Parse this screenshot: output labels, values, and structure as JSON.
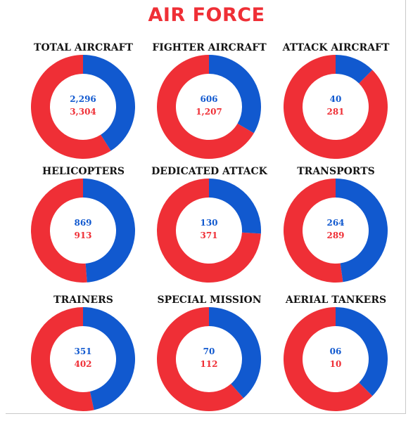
{
  "title": "AIR FORCE",
  "colors": {
    "primary": "#1159cf",
    "secondary": "#ef2f36"
  },
  "chart_data": [
    {
      "type": "pie",
      "title": "TOTAL AIRCRAFT",
      "values": [
        2296,
        3304
      ],
      "labels": [
        "2,296",
        "3,304"
      ]
    },
    {
      "type": "pie",
      "title": "FIGHTER AIRCRAFT",
      "values": [
        606,
        1207
      ],
      "labels": [
        "606",
        "1,207"
      ]
    },
    {
      "type": "pie",
      "title": "ATTACK AIRCRAFT",
      "values": [
        40,
        281
      ],
      "labels": [
        "40",
        "281"
      ]
    },
    {
      "type": "pie",
      "title": "HELICOPTERS",
      "values": [
        869,
        913
      ],
      "labels": [
        "869",
        "913"
      ]
    },
    {
      "type": "pie",
      "title": "DEDICATED ATTACK",
      "values": [
        130,
        371
      ],
      "labels": [
        "130",
        "371"
      ]
    },
    {
      "type": "pie",
      "title": "TRANSPORTS",
      "values": [
        264,
        289
      ],
      "labels": [
        "264",
        "289"
      ]
    },
    {
      "type": "pie",
      "title": "TRAINERS",
      "values": [
        351,
        402
      ],
      "labels": [
        "351",
        "402"
      ]
    },
    {
      "type": "pie",
      "title": "SPECIAL MISSION",
      "values": [
        70,
        112
      ],
      "labels": [
        "70",
        "112"
      ]
    },
    {
      "type": "pie",
      "title": "AERIAL TANKERS",
      "values": [
        6,
        10
      ],
      "labels": [
        "06",
        "10"
      ]
    }
  ]
}
